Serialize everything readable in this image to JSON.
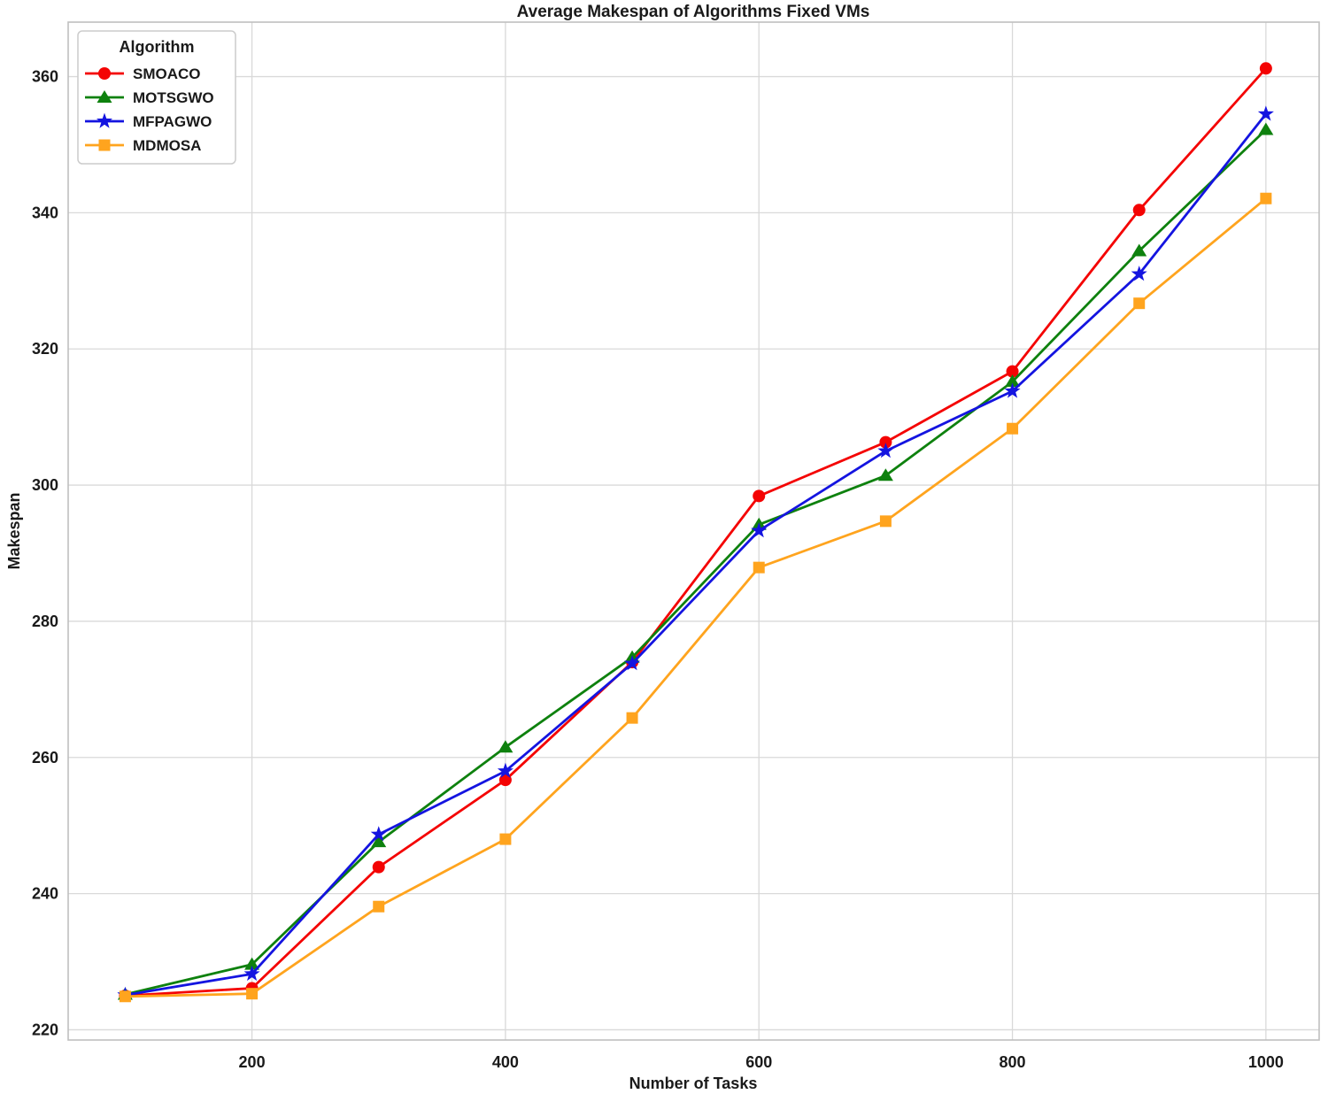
{
  "chart_data": {
    "type": "line",
    "title": "Average Makespan of Algorithms Fixed VMs",
    "xlabel": "Number of Tasks",
    "ylabel": "Makespan",
    "x": [
      100,
      200,
      300,
      400,
      500,
      600,
      700,
      800,
      900,
      1000
    ],
    "xticks": [
      200,
      400,
      600,
      800,
      1000
    ],
    "yticks": [
      220,
      240,
      260,
      280,
      300,
      320,
      340,
      360
    ],
    "xlim": [
      55,
      1042
    ],
    "ylim": [
      218.5,
      368
    ],
    "grid": true,
    "legend": {
      "title": "Algorithm",
      "position": "upper left"
    },
    "series": [
      {
        "name": "SMOACO",
        "color": "#f40303",
        "marker": "circle",
        "values": [
          225.0,
          226.1,
          243.9,
          256.7,
          274.0,
          298.4,
          306.3,
          316.7,
          340.4,
          361.2
        ]
      },
      {
        "name": "MOTSGWO",
        "color": "#0e810e",
        "marker": "triangle",
        "values": [
          225.2,
          229.6,
          247.6,
          261.5,
          274.7,
          294.2,
          301.4,
          315.2,
          334.4,
          352.2
        ]
      },
      {
        "name": "MFPAGWO",
        "color": "#1414e0",
        "marker": "star",
        "values": [
          225.1,
          228.2,
          248.7,
          258.0,
          273.8,
          293.3,
          305.0,
          313.8,
          331.0,
          354.5
        ]
      },
      {
        "name": "MDMOSA",
        "color": "#ffa41e",
        "marker": "square",
        "values": [
          224.9,
          225.3,
          238.1,
          248.0,
          265.8,
          287.9,
          294.7,
          308.3,
          326.7,
          342.1
        ]
      }
    ],
    "colors": {
      "grid": "#d9d9d9",
      "spine": "#bfbfbf",
      "text": "#1a1a1a",
      "legend_border": "#cccccc",
      "background": "#ffffff"
    }
  }
}
